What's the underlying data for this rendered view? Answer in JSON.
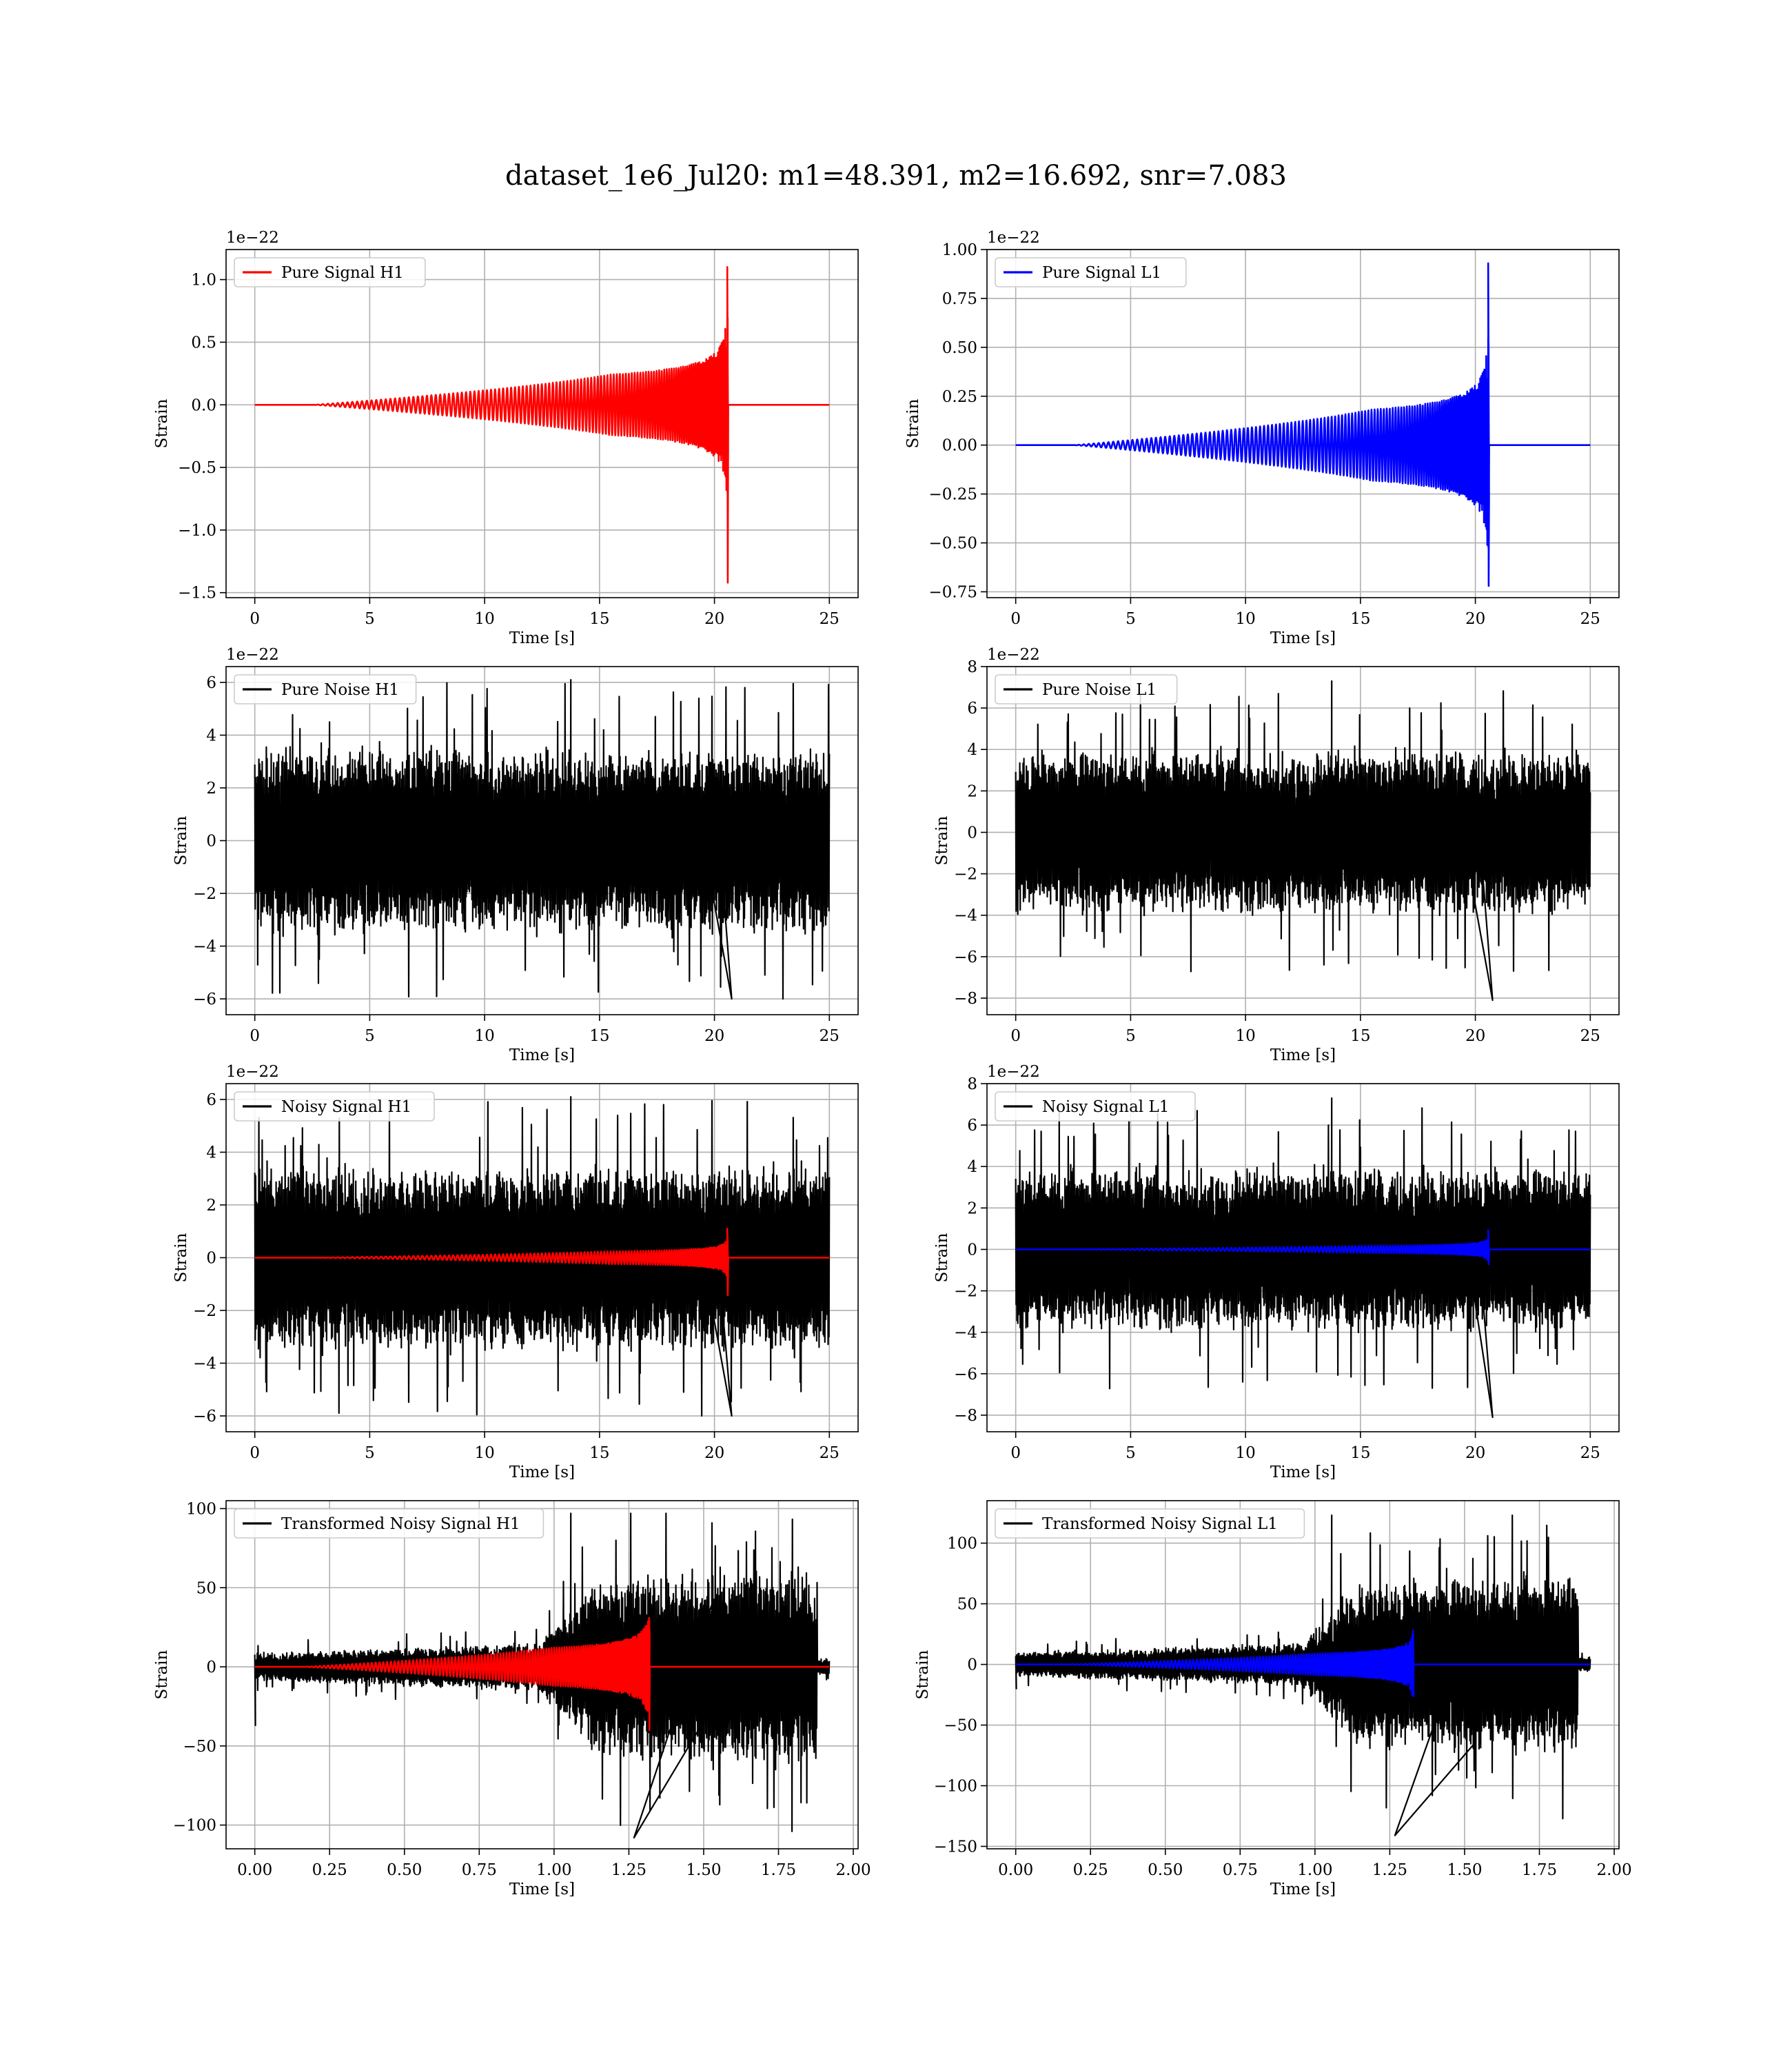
{
  "figure": {
    "title": "dataset_1e6_Jul20: m1=48.391, m2=16.692, snr=7.083"
  },
  "chart_data": [
    {
      "id": "pure-signal-h1",
      "type": "line",
      "kind": "chirp",
      "xlabel": "Time [s]",
      "ylabel": "Strain",
      "offset_label": "1e−22",
      "xlim": [
        -1.25,
        26.25
      ],
      "ylim": [
        -1.54,
        1.24
      ],
      "xticks": [
        0,
        5,
        10,
        15,
        20,
        25
      ],
      "yticks": [
        -1.5,
        -1.0,
        -0.5,
        0.0,
        0.5,
        1.0
      ],
      "ytick_decimals": 1,
      "grid": true,
      "legend_position": "upper-left",
      "series": [
        {
          "name": "Pure Signal H1",
          "color": "#ff0000",
          "x_start": 0,
          "x_end": 25,
          "merger_time": 20.6,
          "peak_max": 1.1,
          "peak_min": -1.42,
          "envelope_near_merger": 0.4
        }
      ]
    },
    {
      "id": "pure-signal-l1",
      "type": "line",
      "kind": "chirp",
      "xlabel": "Time [s]",
      "ylabel": "Strain",
      "offset_label": "1e−22",
      "xlim": [
        -1.25,
        26.25
      ],
      "ylim": [
        -0.78,
        1.0
      ],
      "xticks": [
        0,
        5,
        10,
        15,
        20,
        25
      ],
      "yticks": [
        -0.75,
        -0.5,
        -0.25,
        0.0,
        0.25,
        0.5,
        0.75,
        1.0
      ],
      "ytick_decimals": 2,
      "grid": true,
      "legend_position": "upper-left",
      "series": [
        {
          "name": "Pure Signal L1",
          "color": "#0000ff",
          "x_start": 0,
          "x_end": 25,
          "merger_time": 20.6,
          "peak_max": 0.93,
          "peak_min": -0.72,
          "envelope_near_merger": 0.3
        }
      ]
    },
    {
      "id": "pure-noise-h1",
      "type": "line",
      "kind": "noise",
      "xlabel": "Time [s]",
      "ylabel": "Strain",
      "offset_label": "1e−22",
      "xlim": [
        -1.25,
        26.25
      ],
      "ylim": [
        -6.6,
        6.6
      ],
      "xticks": [
        0,
        5,
        10,
        15,
        20,
        25
      ],
      "yticks": [
        -6,
        -4,
        -2,
        0,
        2,
        4,
        6
      ],
      "ytick_decimals": 0,
      "grid": true,
      "legend_position": "upper-left",
      "series": [
        {
          "name": "Pure Noise H1",
          "color": "#000000",
          "x_start": 0,
          "x_end": 25,
          "band": 3.2,
          "spike_max": 6.1,
          "spike_min": -6.0
        }
      ]
    },
    {
      "id": "pure-noise-l1",
      "type": "line",
      "kind": "noise",
      "xlabel": "Time [s]",
      "ylabel": "Strain",
      "offset_label": "1e−22",
      "xlim": [
        -1.25,
        26.25
      ],
      "ylim": [
        -8.8,
        8.0
      ],
      "xticks": [
        0,
        5,
        10,
        15,
        20,
        25
      ],
      "yticks": [
        -8,
        -6,
        -4,
        -2,
        0,
        2,
        4,
        6,
        8
      ],
      "ytick_decimals": 0,
      "grid": true,
      "legend_position": "upper-left",
      "series": [
        {
          "name": "Pure Noise L1",
          "color": "#000000",
          "x_start": 0,
          "x_end": 25,
          "band": 3.6,
          "spike_max": 7.3,
          "spike_min": -8.1
        }
      ]
    },
    {
      "id": "noisy-signal-h1",
      "type": "line",
      "kind": "noise+chirp",
      "xlabel": "Time [s]",
      "ylabel": "Strain",
      "offset_label": "1e−22",
      "xlim": [
        -1.25,
        26.25
      ],
      "ylim": [
        -6.6,
        6.6
      ],
      "xticks": [
        0,
        5,
        10,
        15,
        20,
        25
      ],
      "yticks": [
        -6,
        -4,
        -2,
        0,
        2,
        4,
        6
      ],
      "ytick_decimals": 0,
      "grid": true,
      "legend_position": "upper-left",
      "series": [
        {
          "name": "Noisy Signal H1",
          "color": "#000000",
          "x_start": 0,
          "x_end": 25,
          "band": 3.2,
          "spike_max": 6.1,
          "spike_min": -6.0
        },
        {
          "name": "",
          "color": "#ff0000",
          "x_start": 0,
          "x_end": 25,
          "merger_time": 20.6,
          "peak_max": 1.1,
          "peak_min": -1.42,
          "envelope_near_merger": 0.4
        }
      ]
    },
    {
      "id": "noisy-signal-l1",
      "type": "line",
      "kind": "noise+chirp",
      "xlabel": "Time [s]",
      "ylabel": "Strain",
      "offset_label": "1e−22",
      "xlim": [
        -1.25,
        26.25
      ],
      "ylim": [
        -8.8,
        8.0
      ],
      "xticks": [
        0,
        5,
        10,
        15,
        20,
        25
      ],
      "yticks": [
        -8,
        -6,
        -4,
        -2,
        0,
        2,
        4,
        6,
        8
      ],
      "ytick_decimals": 0,
      "grid": true,
      "legend_position": "upper-left",
      "series": [
        {
          "name": "Noisy Signal L1",
          "color": "#000000",
          "x_start": 0,
          "x_end": 25,
          "band": 3.6,
          "spike_max": 7.3,
          "spike_min": -8.1
        },
        {
          "name": "",
          "color": "#0000ff",
          "x_start": 0,
          "x_end": 25,
          "merger_time": 20.6,
          "peak_max": 0.93,
          "peak_min": -0.72,
          "envelope_near_merger": 0.3
        }
      ]
    },
    {
      "id": "transformed-noisy-signal-h1",
      "type": "line",
      "kind": "transformed",
      "xlabel": "Time [s]",
      "ylabel": "Strain",
      "offset_label": "",
      "xlim": [
        -0.096,
        2.016
      ],
      "ylim": [
        -115,
        105
      ],
      "xticks": [
        0.0,
        0.25,
        0.5,
        0.75,
        1.0,
        1.25,
        1.5,
        1.75,
        2.0
      ],
      "xtick_decimals": 2,
      "yticks": [
        -100,
        -50,
        0,
        50,
        100
      ],
      "ytick_decimals": 0,
      "grid": true,
      "legend_position": "upper-left",
      "series": [
        {
          "name": "Transformed Noisy Signal H1",
          "color": "#000000",
          "x_start": 0,
          "x_end": 1.92,
          "early_band": 8,
          "late_band": 45,
          "transition_time": 1.1,
          "late_end": 1.88,
          "spike_max": 97,
          "spike_min": -108,
          "initial_dip": -37
        },
        {
          "name": "",
          "color": "#ff0000",
          "x_start": 0,
          "x_end": 1.92,
          "merger_time": 1.32,
          "peak_max": 31,
          "peak_min": -40,
          "envelope_near_merger": 20
        }
      ]
    },
    {
      "id": "transformed-noisy-signal-l1",
      "type": "line",
      "kind": "transformed",
      "xlabel": "Time [s]",
      "ylabel": "Strain",
      "offset_label": "",
      "xlim": [
        -0.096,
        2.016
      ],
      "ylim": [
        -152,
        135
      ],
      "xticks": [
        0.0,
        0.25,
        0.5,
        0.75,
        1.0,
        1.25,
        1.5,
        1.75,
        2.0
      ],
      "xtick_decimals": 2,
      "yticks": [
        -150,
        -100,
        -50,
        0,
        50,
        100
      ],
      "ytick_decimals": 0,
      "grid": true,
      "legend_position": "upper-left",
      "series": [
        {
          "name": "Transformed Noisy Signal L1",
          "color": "#000000",
          "x_start": 0,
          "x_end": 1.92,
          "early_band": 9,
          "late_band": 55,
          "transition_time": 1.1,
          "late_end": 1.88,
          "spike_max": 123,
          "spike_min": -141,
          "initial_dip": -20
        },
        {
          "name": "",
          "color": "#0000ff",
          "x_start": 0,
          "x_end": 1.92,
          "merger_time": 1.33,
          "peak_max": 28,
          "peak_min": -20,
          "envelope_near_merger": 15
        }
      ]
    }
  ]
}
